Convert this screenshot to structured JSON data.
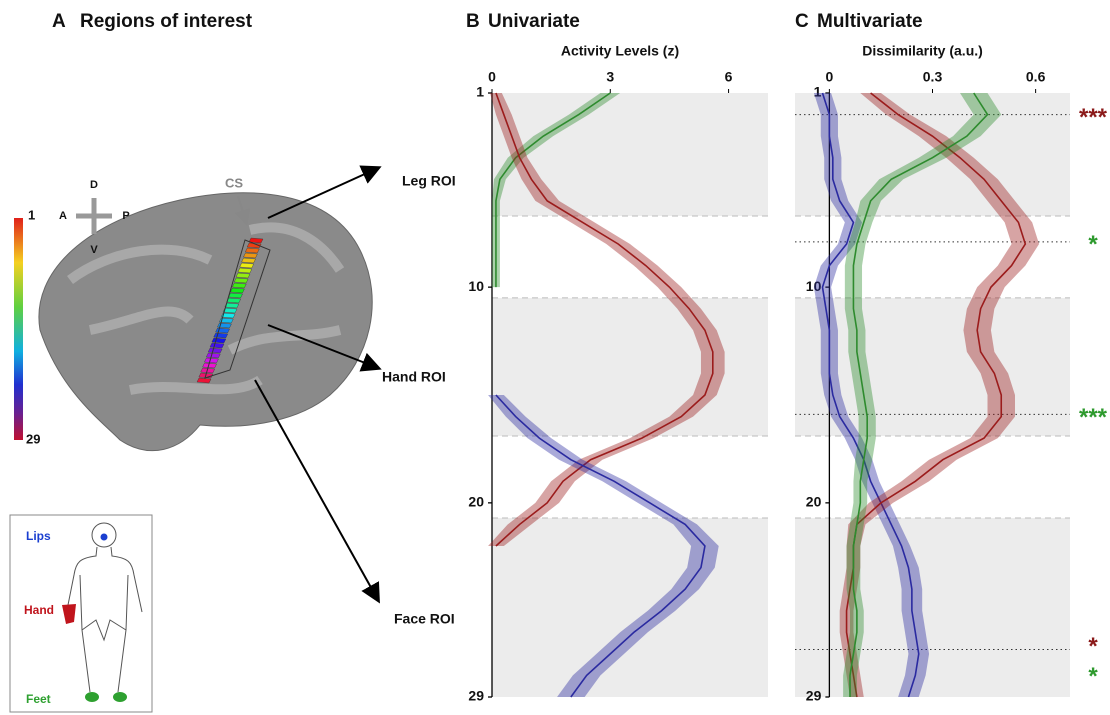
{
  "panel_a": {
    "letter": "A",
    "title": "Regions of interest",
    "colorbar": {
      "top": 1,
      "bottom": 29
    },
    "compass": {
      "up": "D",
      "left": "A",
      "right": "P",
      "down": "V"
    },
    "sulcus": "CS",
    "rois": [
      "Leg ROI",
      "Hand ROI",
      "Face ROI"
    ],
    "body": [
      "Lips",
      "Hand",
      "Feet"
    ]
  },
  "chart_data": [
    {
      "type": "line",
      "panel": "B",
      "title": "Univariate",
      "xlabel": "Activity Levels (z)",
      "y": [
        1,
        2,
        3,
        4,
        5,
        6,
        7,
        8,
        9,
        10,
        11,
        12,
        13,
        14,
        15,
        16,
        17,
        18,
        19,
        20,
        21,
        22,
        23,
        24,
        25,
        26,
        27,
        28,
        29
      ],
      "series": [
        {
          "color": "#2e8b2e",
          "values": [
            3.0,
            2.2,
            1.3,
            0.6,
            0.2,
            0.1,
            0.1,
            0.1,
            0.1,
            0.1,
            null,
            null,
            null,
            null,
            null,
            null,
            null,
            null,
            null,
            null,
            null,
            null,
            null,
            null,
            null,
            null,
            null,
            null,
            null
          ],
          "errors": [
            0.25,
            0.25,
            0.25,
            0.2,
            0.15,
            0.1,
            0.1,
            0.1,
            0.1,
            0.1,
            null,
            null,
            null,
            null,
            null,
            null,
            null,
            null,
            null,
            null,
            null,
            null,
            null,
            null,
            null,
            null,
            null,
            null,
            null
          ]
        },
        {
          "color": "#9b1c1c",
          "values": [
            0.1,
            0.3,
            0.5,
            0.7,
            1.0,
            1.4,
            2.3,
            3.2,
            3.9,
            4.5,
            5.0,
            5.4,
            5.6,
            5.6,
            5.4,
            4.8,
            3.8,
            2.5,
            1.8,
            1.4,
            0.7,
            0.1,
            null,
            null,
            null,
            null,
            null,
            null,
            null
          ],
          "errors": [
            0.15,
            0.2,
            0.2,
            0.2,
            0.25,
            0.3,
            0.3,
            0.3,
            0.3,
            0.3,
            0.3,
            0.3,
            0.3,
            0.3,
            0.3,
            0.3,
            0.3,
            0.3,
            0.3,
            0.3,
            0.3,
            0.2,
            null,
            null,
            null,
            null,
            null,
            null,
            null
          ]
        },
        {
          "color": "#2a2aa0",
          "values": [
            null,
            null,
            null,
            null,
            null,
            null,
            null,
            null,
            null,
            null,
            null,
            null,
            null,
            null,
            0.1,
            0.6,
            1.2,
            2.0,
            3.1,
            4.0,
            4.9,
            5.4,
            5.3,
            4.9,
            4.3,
            3.6,
            3.0,
            2.4,
            2.0
          ],
          "errors": [
            null,
            null,
            null,
            null,
            null,
            null,
            null,
            null,
            null,
            null,
            null,
            null,
            null,
            null,
            0.2,
            0.25,
            0.3,
            0.3,
            0.3,
            0.3,
            0.3,
            0.35,
            0.35,
            0.35,
            0.35,
            0.35,
            0.35,
            0.35,
            0.35
          ]
        }
      ],
      "xlim": [
        0,
        7
      ],
      "xticks": [
        0,
        3,
        6
      ],
      "ylim": [
        1,
        29
      ],
      "yticks": [
        1,
        10,
        20,
        29
      ],
      "bands": [
        [
          1,
          6.7
        ],
        [
          10.5,
          16.9
        ],
        [
          20.7,
          29
        ]
      ],
      "band_color": "#ececec"
    },
    {
      "type": "line",
      "panel": "C",
      "title": "Multivariate",
      "xlabel": "Dissimilarity (a.u.)",
      "y": [
        1,
        2,
        3,
        4,
        5,
        6,
        7,
        8,
        9,
        10,
        11,
        12,
        13,
        14,
        15,
        16,
        17,
        18,
        19,
        20,
        21,
        22,
        23,
        24,
        25,
        26,
        27,
        28,
        29
      ],
      "series": [
        {
          "color": "#2a2aa0",
          "values": [
            -0.02,
            0.0,
            0.0,
            0.01,
            0.01,
            0.03,
            0.07,
            0.05,
            0.0,
            -0.02,
            -0.01,
            0.0,
            0.0,
            0.0,
            0.01,
            0.03,
            0.07,
            0.1,
            0.12,
            0.15,
            0.18,
            0.21,
            0.23,
            0.24,
            0.24,
            0.25,
            0.26,
            0.25,
            0.23
          ],
          "errors": [
            0.025,
            0.025,
            0.025,
            0.025,
            0.025,
            0.025,
            0.025,
            0.025,
            0.025,
            0.025,
            0.025,
            0.025,
            0.025,
            0.025,
            0.025,
            0.025,
            0.025,
            0.025,
            0.025,
            0.025,
            0.025,
            0.025,
            0.03,
            0.03,
            0.03,
            0.03,
            0.03,
            0.03,
            0.03
          ]
        },
        {
          "color": "#9b1c1c",
          "values": [
            0.12,
            0.2,
            0.3,
            0.38,
            0.45,
            0.5,
            0.55,
            0.57,
            0.53,
            0.47,
            0.44,
            0.43,
            0.44,
            0.48,
            0.5,
            0.5,
            0.45,
            0.33,
            0.25,
            0.15,
            0.08,
            0.07,
            0.07,
            0.06,
            0.05,
            0.05,
            0.06,
            0.07,
            0.08
          ],
          "errors": [
            0.03,
            0.035,
            0.04,
            0.04,
            0.04,
            0.04,
            0.04,
            0.04,
            0.04,
            0.04,
            0.04,
            0.04,
            0.04,
            0.04,
            0.04,
            0.04,
            0.04,
            0.04,
            0.04,
            0.035,
            0.025,
            0.02,
            0.02,
            0.02,
            0.02,
            0.02,
            0.02,
            0.02,
            0.02
          ]
        },
        {
          "color": "#2e8b2e",
          "values": [
            0.42,
            0.46,
            0.4,
            0.3,
            0.18,
            0.12,
            0.1,
            0.08,
            0.07,
            0.07,
            0.07,
            0.08,
            0.08,
            0.09,
            0.1,
            0.11,
            0.11,
            0.1,
            0.09,
            0.09,
            0.08,
            0.07,
            0.07,
            0.07,
            0.08,
            0.08,
            0.07,
            0.06,
            0.06
          ],
          "errors": [
            0.04,
            0.04,
            0.04,
            0.04,
            0.035,
            0.03,
            0.025,
            0.025,
            0.025,
            0.025,
            0.025,
            0.025,
            0.025,
            0.025,
            0.025,
            0.025,
            0.025,
            0.025,
            0.02,
            0.02,
            0.02,
            0.02,
            0.02,
            0.02,
            0.02,
            0.02,
            0.02,
            0.02,
            0.02
          ]
        }
      ],
      "xlim": [
        -0.1,
        0.7
      ],
      "xticks": [
        0,
        0.3,
        0.6
      ],
      "ylim": [
        1,
        29
      ],
      "yticks": [
        1,
        10,
        20,
        29
      ],
      "bands": [
        [
          1,
          6.7
        ],
        [
          10.5,
          16.9
        ],
        [
          20.7,
          29
        ]
      ],
      "band_color": "#ececec",
      "annotations": [
        {
          "y": 2,
          "text": "***",
          "color": "#8b1a1a"
        },
        {
          "y": 7.9,
          "text": "*",
          "color": "#2e9a2e"
        },
        {
          "y": 15.9,
          "text": "***",
          "color": "#2e9a2e"
        },
        {
          "y": 26.8,
          "text": "*",
          "color": "#8b1a1a"
        },
        {
          "y": 26.8,
          "text": "*",
          "color": "#2e9a2e"
        }
      ]
    }
  ]
}
